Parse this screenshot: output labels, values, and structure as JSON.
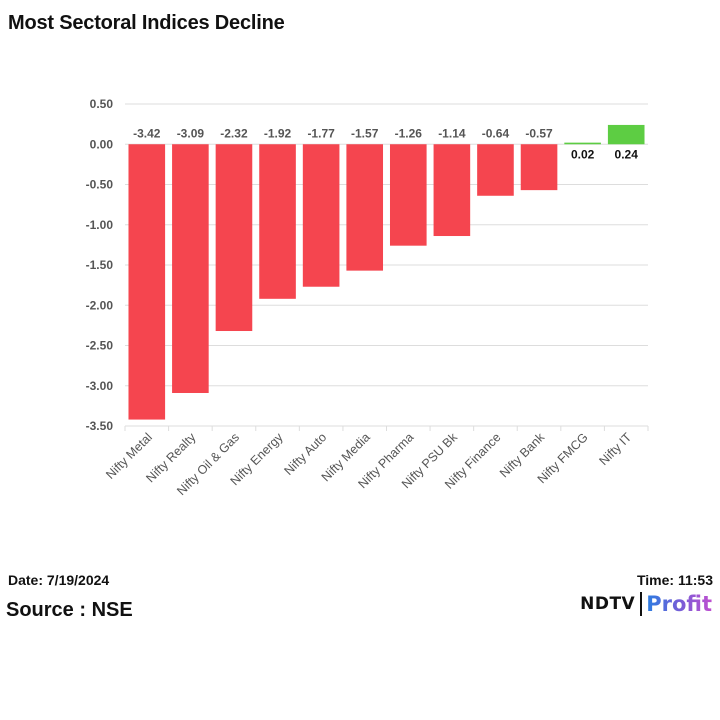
{
  "title": "Most Sectoral Indices Decline",
  "chart_data": {
    "type": "bar",
    "title": "Most Sectoral Indices Decline",
    "categories": [
      "Nifty Metal",
      "Nifty Realty",
      "Nifty Oil & Gas",
      "Nifty Energy",
      "Nifty Auto",
      "Nifty Media",
      "Nifty Pharma",
      "Nifty PSU Bk",
      "Nifty Finance",
      "Nifty Bank",
      "Nifty FMCG",
      "Nifty IT"
    ],
    "values": [
      -3.42,
      -3.09,
      -2.32,
      -1.92,
      -1.77,
      -1.57,
      -1.26,
      -1.14,
      -0.64,
      -0.57,
      0.02,
      0.24
    ],
    "value_labels": [
      "-3.42",
      "-3.09",
      "-2.32",
      "-1.92",
      "-1.77",
      "-1.57",
      "-1.26",
      "-1.14",
      "-0.64",
      "-0.57",
      "0.02",
      "0.24"
    ],
    "ylim": [
      -3.5,
      0.5
    ],
    "yticks": [
      0.5,
      0.0,
      -0.5,
      -1.0,
      -1.5,
      -2.0,
      -2.5,
      -3.0,
      -3.5
    ],
    "ytick_labels": [
      "0.50",
      "0.00",
      "-0.50",
      "-1.00",
      "-1.50",
      "-2.00",
      "-2.50",
      "-3.00",
      "-3.50"
    ],
    "xlabel": "",
    "ylabel": "",
    "grid": true,
    "colors": {
      "negative": "#f5454f",
      "positive": "#5dcd43",
      "grid": "#dddddd",
      "axis_text": "#555555",
      "negative_label": "#555555",
      "positive_label": "#111111"
    }
  },
  "footer": {
    "date": "Date: 7/19/2024",
    "source": "Source : NSE",
    "time": "Time: 11:53",
    "logo_left": "NDTV",
    "logo_right": "Profit"
  }
}
